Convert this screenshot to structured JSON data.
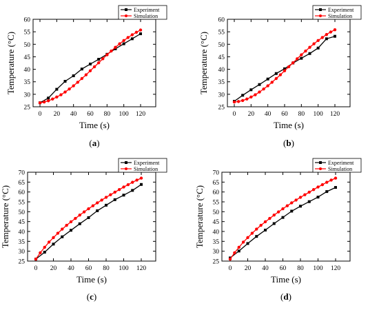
{
  "colors": {
    "experiment": "#000000",
    "simulation": "#ff0000",
    "axis": "#000000"
  },
  "chart_data": [
    {
      "type": "line",
      "caption_letter": "a",
      "xlabel": "Time (s)",
      "ylabel": "Temperature (°C)",
      "xlim": [
        0,
        120
      ],
      "ylim": [
        25,
        60
      ],
      "xticks": [
        0,
        20,
        40,
        60,
        80,
        100,
        120
      ],
      "yticks": [
        25,
        30,
        35,
        40,
        45,
        50,
        55,
        60
      ],
      "grid": false,
      "legend": "top-right",
      "series": [
        {
          "name": "Experiment",
          "color": "#000000",
          "x": [
            0,
            10,
            20,
            30,
            40,
            50,
            60,
            70,
            80,
            90,
            100,
            110,
            120
          ],
          "y": [
            26.6,
            28.5,
            32.0,
            35.2,
            37.4,
            40.1,
            42.1,
            44.0,
            46.0,
            48.2,
            50.2,
            52.2,
            54.2
          ]
        },
        {
          "name": "Simulation",
          "color": "#ff0000",
          "x": [
            0,
            5,
            10,
            15,
            20,
            25,
            30,
            35,
            40,
            45,
            50,
            55,
            60,
            65,
            70,
            75,
            80,
            85,
            90,
            95,
            100,
            105,
            110,
            115,
            120
          ],
          "y": [
            26.6,
            26.9,
            27.4,
            28.1,
            28.9,
            29.8,
            30.9,
            32.1,
            33.4,
            34.8,
            36.3,
            37.8,
            39.4,
            41.0,
            42.6,
            44.2,
            45.8,
            47.3,
            48.8,
            50.2,
            51.5,
            52.7,
            53.8,
            54.8,
            55.7
          ]
        }
      ]
    },
    {
      "type": "line",
      "caption_letter": "b",
      "xlabel": "Time (s)",
      "ylabel": "Temperature (°C)",
      "xlim": [
        0,
        120
      ],
      "ylim": [
        25,
        60
      ],
      "xticks": [
        0,
        20,
        40,
        60,
        80,
        100,
        120
      ],
      "yticks": [
        25,
        30,
        35,
        40,
        45,
        50,
        55,
        60
      ],
      "grid": false,
      "legend": "top-right",
      "series": [
        {
          "name": "Experiment",
          "color": "#000000",
          "x": [
            0,
            10,
            20,
            30,
            40,
            50,
            60,
            70,
            80,
            90,
            100,
            110,
            120
          ],
          "y": [
            27.2,
            29.6,
            31.8,
            33.9,
            36.1,
            38.3,
            40.2,
            42.5,
            44.4,
            46.3,
            48.5,
            52.2,
            53.2
          ]
        },
        {
          "name": "Simulation",
          "color": "#ff0000",
          "x": [
            0,
            5,
            10,
            15,
            20,
            25,
            30,
            35,
            40,
            45,
            50,
            55,
            60,
            65,
            70,
            75,
            80,
            85,
            90,
            95,
            100,
            105,
            110,
            115,
            120
          ],
          "y": [
            26.9,
            27.1,
            27.5,
            28.1,
            28.9,
            29.8,
            30.9,
            32.1,
            33.4,
            34.8,
            36.3,
            37.8,
            39.4,
            41.0,
            42.6,
            44.2,
            45.8,
            47.3,
            48.8,
            50.2,
            51.5,
            52.7,
            53.9,
            54.9,
            55.8
          ]
        }
      ]
    },
    {
      "type": "line",
      "caption_letter": "c",
      "xlabel": "Time (s)",
      "ylabel": "Temperature (°C)",
      "xlim": [
        0,
        120
      ],
      "ylim": [
        25,
        70
      ],
      "xticks": [
        0,
        20,
        40,
        60,
        80,
        100,
        120
      ],
      "yticks": [
        25,
        30,
        35,
        40,
        45,
        50,
        55,
        60,
        65,
        70
      ],
      "grid": false,
      "legend": "top-right",
      "series": [
        {
          "name": "Experiment",
          "color": "#000000",
          "x": [
            0,
            10,
            20,
            30,
            40,
            50,
            60,
            70,
            80,
            90,
            100,
            110,
            120
          ],
          "y": [
            26.0,
            29.5,
            33.6,
            37.3,
            40.6,
            43.9,
            47.0,
            50.5,
            53.3,
            56.1,
            58.4,
            60.8,
            63.8
          ]
        },
        {
          "name": "Simulation",
          "color": "#ff0000",
          "x": [
            0,
            5,
            10,
            15,
            20,
            25,
            30,
            35,
            40,
            45,
            50,
            55,
            60,
            65,
            70,
            75,
            80,
            85,
            90,
            95,
            100,
            105,
            110,
            115,
            120
          ],
          "y": [
            26.0,
            29.2,
            32.0,
            34.6,
            36.9,
            39.1,
            41.2,
            43.1,
            44.9,
            46.6,
            48.3,
            49.9,
            51.5,
            53.0,
            54.5,
            55.9,
            57.3,
            58.6,
            59.9,
            61.2,
            62.5,
            63.7,
            64.9,
            66.0,
            67.0
          ]
        }
      ]
    },
    {
      "type": "line",
      "caption_letter": "d",
      "xlabel": "Time (s)",
      "ylabel": "Temperature (°C)",
      "xlim": [
        0,
        120
      ],
      "ylim": [
        25,
        70
      ],
      "xticks": [
        0,
        20,
        40,
        60,
        80,
        100,
        120
      ],
      "yticks": [
        25,
        30,
        35,
        40,
        45,
        50,
        55,
        60,
        65,
        70
      ],
      "grid": false,
      "legend": "top-right",
      "series": [
        {
          "name": "Experiment",
          "color": "#000000",
          "x": [
            0,
            10,
            20,
            30,
            40,
            50,
            60,
            70,
            80,
            90,
            100,
            110,
            120
          ],
          "y": [
            26.6,
            30.1,
            33.9,
            37.5,
            40.7,
            44.0,
            47.1,
            50.3,
            52.8,
            55.1,
            57.4,
            60.2,
            62.3
          ]
        },
        {
          "name": "Simulation",
          "color": "#ff0000",
          "x": [
            0,
            5,
            10,
            15,
            20,
            25,
            30,
            35,
            40,
            45,
            50,
            55,
            60,
            65,
            70,
            75,
            80,
            85,
            90,
            95,
            100,
            105,
            110,
            115,
            120
          ],
          "y": [
            26.0,
            29.2,
            32.0,
            34.6,
            36.9,
            39.1,
            41.2,
            43.1,
            44.9,
            46.6,
            48.3,
            49.9,
            51.5,
            53.0,
            54.5,
            55.9,
            57.3,
            58.6,
            59.9,
            61.2,
            62.5,
            63.7,
            64.9,
            66.0,
            67.0
          ]
        }
      ]
    }
  ]
}
